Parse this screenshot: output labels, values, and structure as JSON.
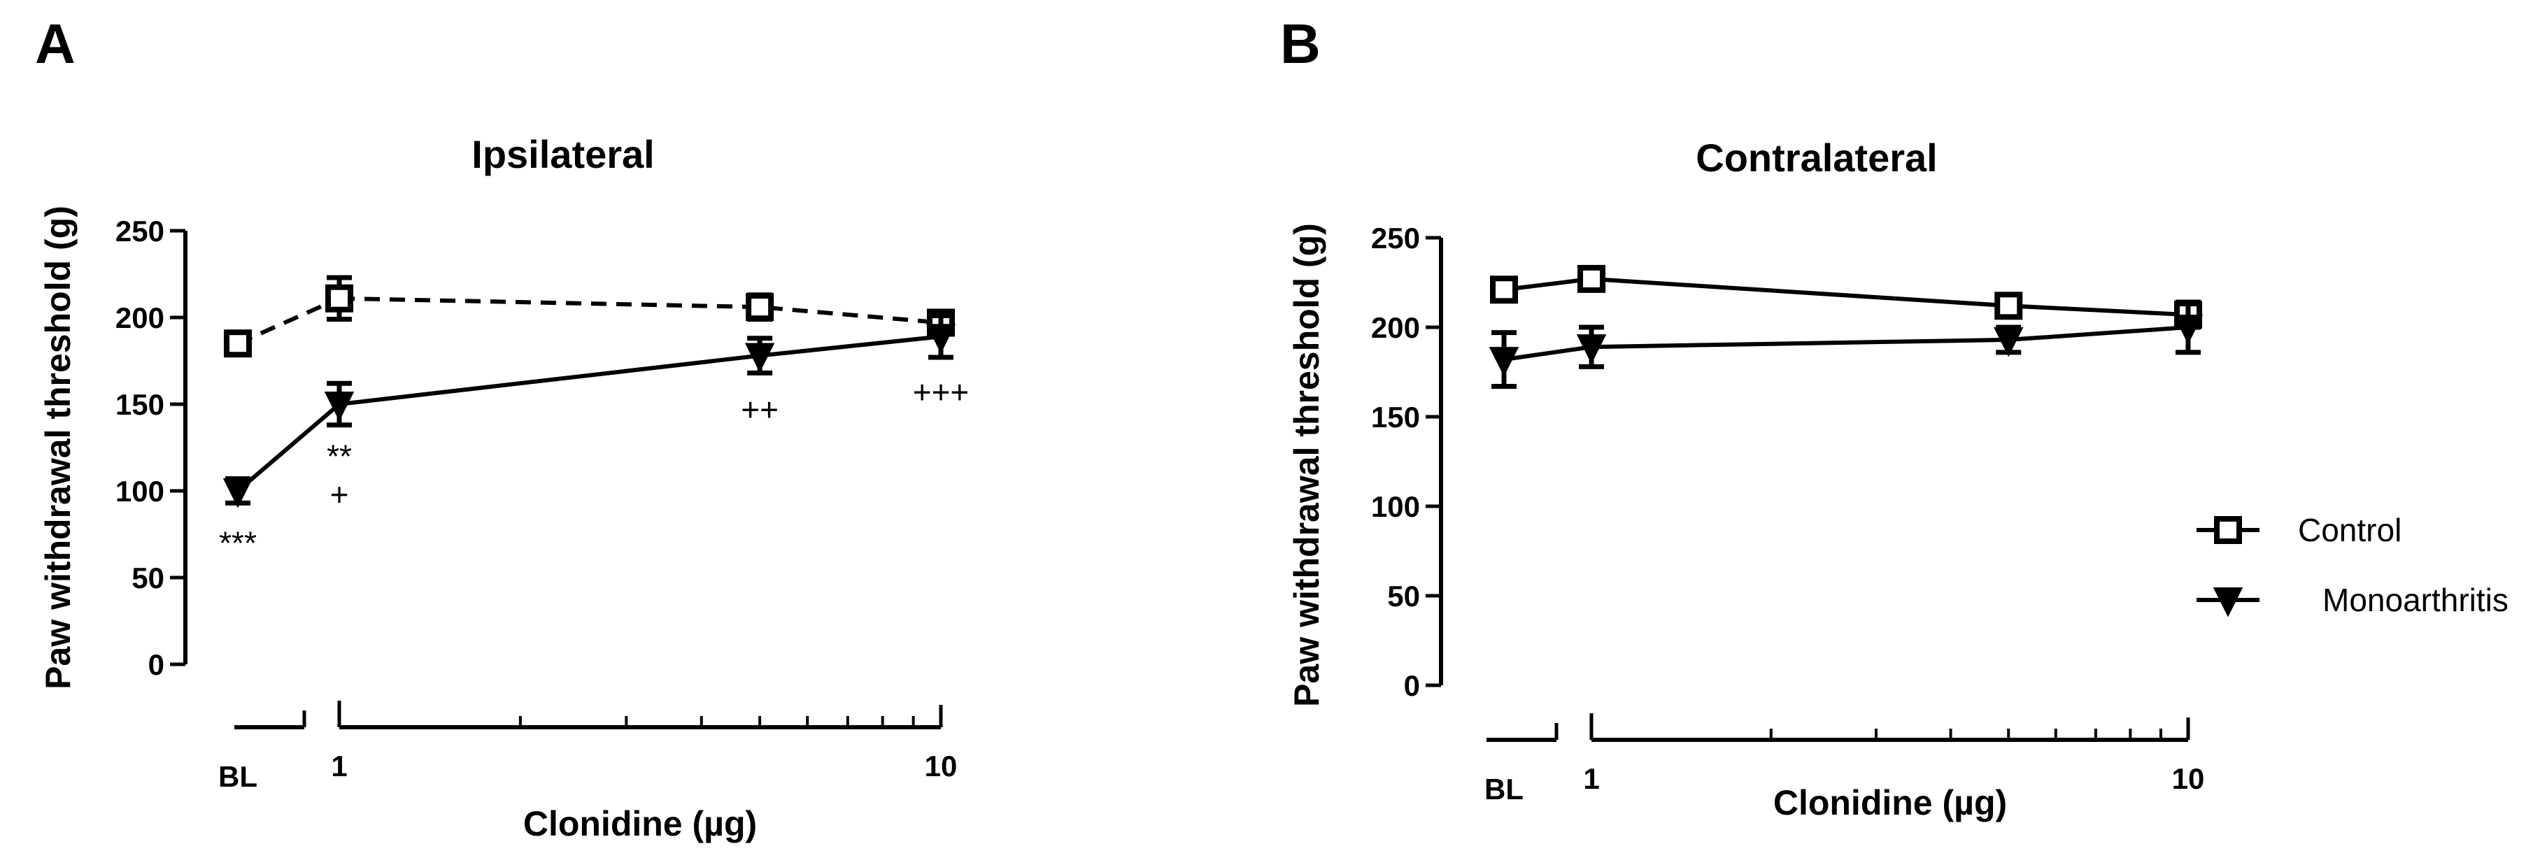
{
  "chart_data": [
    {
      "type": "line",
      "panel": "A",
      "title": "Ipsilateral",
      "xlabel": "Clonidine (µg)",
      "ylabel": "Paw withdrawal threshold (g)",
      "ylim": [
        0,
        250
      ],
      "yticks": [
        "0",
        "50",
        "100",
        "150",
        "200",
        "250"
      ],
      "xscale": "log",
      "xlim": [
        1,
        10
      ],
      "xticks": [
        "1",
        "10"
      ],
      "baseline_label": "BL",
      "grid": false,
      "series": [
        {
          "name": "Control",
          "marker": "open-square",
          "line": "dashed",
          "baseline": {
            "y": 185,
            "err": 5
          },
          "x": [
            1,
            5,
            10
          ],
          "y": [
            211,
            206,
            197
          ],
          "err": [
            12,
            7,
            5
          ]
        },
        {
          "name": "Monoarthritis",
          "marker": "filled-down-triangle",
          "line": "solid",
          "baseline": {
            "y": 100,
            "err": 7
          },
          "x": [
            1,
            5,
            10
          ],
          "y": [
            150,
            178,
            189
          ],
          "err": [
            12,
            10,
            12
          ]
        }
      ],
      "annotations": [
        {
          "text": "***",
          "x": "BL",
          "y": 70
        },
        {
          "text": "**",
          "x": 1,
          "y": 120
        },
        {
          "text": "+",
          "x": 1,
          "y": 98
        },
        {
          "text": "++",
          "x": 5,
          "y": 147
        },
        {
          "text": "+++",
          "x": 10,
          "y": 157
        }
      ]
    },
    {
      "type": "line",
      "panel": "B",
      "title": "Contralateral",
      "xlabel": "Clonidine (µg)",
      "ylabel": "Paw withdrawal threshold (g)",
      "ylim": [
        0,
        250
      ],
      "yticks": [
        "0",
        "50",
        "100",
        "150",
        "200",
        "250"
      ],
      "xscale": "log",
      "xlim": [
        1,
        10
      ],
      "xticks": [
        "1",
        "10"
      ],
      "baseline_label": "BL",
      "grid": false,
      "legend": "right",
      "series": [
        {
          "name": "Control",
          "marker": "open-square",
          "line": "solid",
          "baseline": {
            "y": 221,
            "err": 6
          },
          "x": [
            1,
            5,
            10
          ],
          "y": [
            227,
            212,
            207
          ],
          "err": [
            5,
            4,
            7
          ]
        },
        {
          "name": "Monoarthritis",
          "marker": "filled-down-triangle",
          "line": "solid",
          "baseline": {
            "y": 182,
            "err": 15
          },
          "x": [
            1,
            5,
            10
          ],
          "y": [
            189,
            193,
            200
          ],
          "err": [
            11,
            7,
            14
          ]
        }
      ]
    }
  ]
}
